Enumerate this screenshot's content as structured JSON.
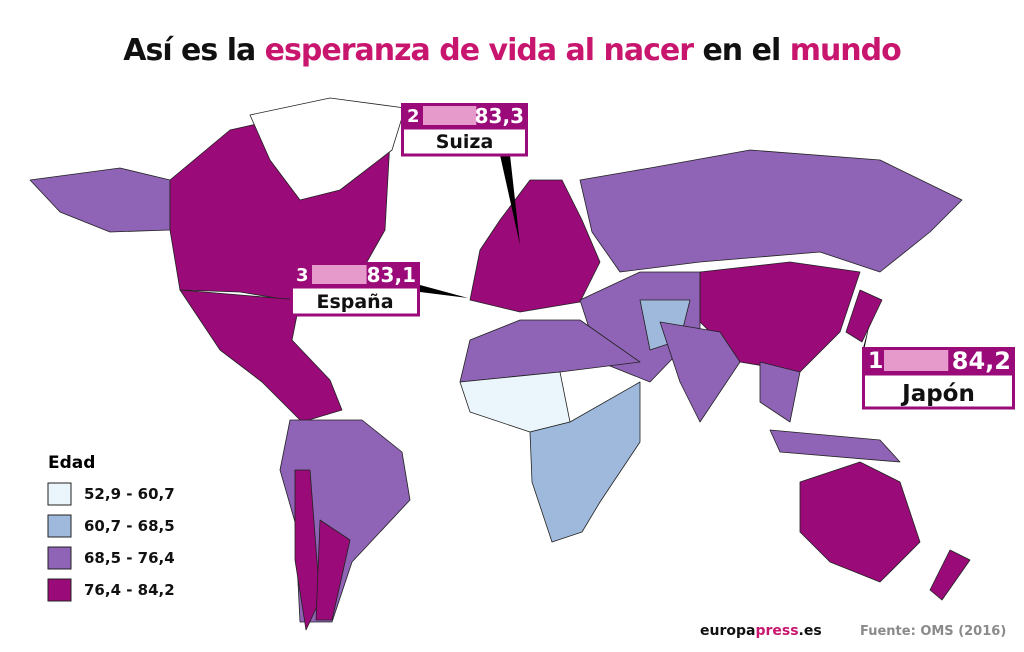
{
  "header": {
    "title": [
      {
        "text": "Así es la ",
        "accent": false
      },
      {
        "text": "esperanza de vida al nacer",
        "accent": true
      },
      {
        "text": " en el ",
        "accent": false
      },
      {
        "text": "mundo",
        "accent": true
      }
    ]
  },
  "callouts": [
    {
      "rank": "2",
      "value": "83,3",
      "country": "Suiza"
    },
    {
      "rank": "3",
      "value": "83,1",
      "country": "España"
    },
    {
      "rank": "1",
      "value": "84,2",
      "country": "Japón"
    }
  ],
  "legend": {
    "title": "Edad",
    "items": [
      "52,9 - 60,7",
      "60,7 - 68,5",
      "68,5 - 76,4",
      "76,4 - 84,2"
    ]
  },
  "footer": {
    "brand": [
      {
        "text": "europa",
        "accent": false
      },
      {
        "text": "press",
        "accent": true
      },
      {
        "text": ".es",
        "accent": false
      }
    ],
    "source": "Fuente: OMS (2016)"
  }
}
